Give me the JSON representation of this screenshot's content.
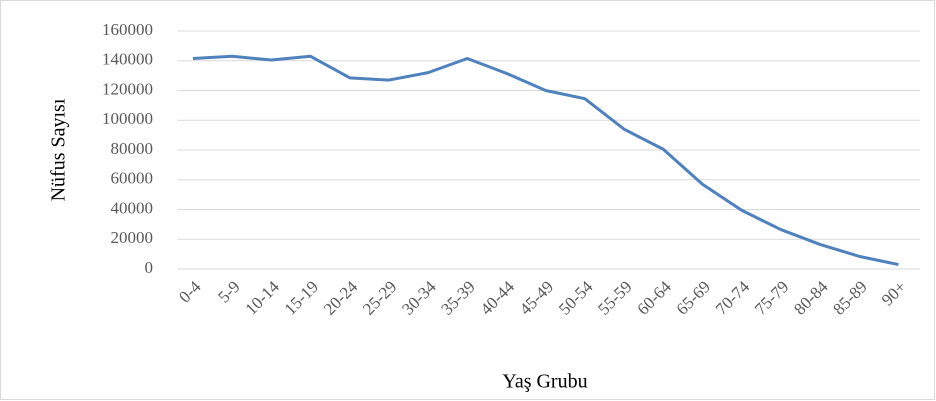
{
  "chart_data": {
    "type": "line",
    "x_label": "Yaş Grubu",
    "y_label": "Nüfus Sayısı",
    "categories": [
      "0-4",
      "5-9",
      "10-14",
      "15-19",
      "20-24",
      "25-29",
      "30-34",
      "35-39",
      "40-44",
      "45-49",
      "50-54",
      "55-59",
      "60-64",
      "65-69",
      "70-74",
      "75-79",
      "80-84",
      "85-89",
      "90+"
    ],
    "series": [
      {
        "name": "Nüfus Sayısı",
        "color": "#4f81bd",
        "values": [
          141500,
          143000,
          140500,
          143000,
          128500,
          127000,
          132000,
          141500,
          131500,
          120000,
          114500,
          94000,
          80500,
          57000,
          39500,
          26500,
          16500,
          8500,
          3000
        ]
      }
    ],
    "ylim": [
      0,
      160000
    ],
    "yticks": [
      0,
      20000,
      40000,
      60000,
      80000,
      100000,
      120000,
      140000,
      160000
    ],
    "grid": true
  }
}
